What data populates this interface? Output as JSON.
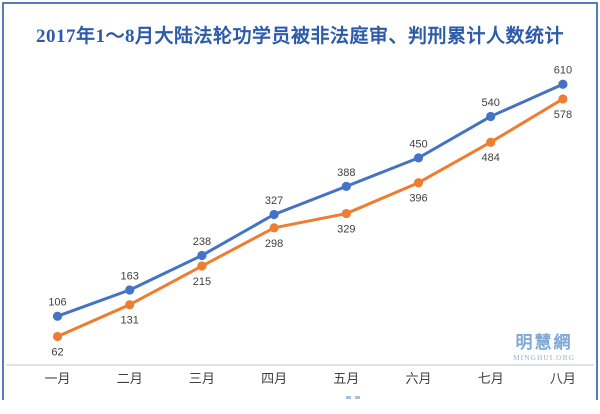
{
  "chart_data": {
    "type": "line",
    "title": "2017年1～8月大陆法轮功学员被非法庭审、判刑累计人数统计",
    "categories": [
      "一月",
      "二月",
      "三月",
      "四月",
      "五月",
      "六月",
      "七月",
      "八月"
    ],
    "series": [
      {
        "name": "blue-line",
        "color": "#4472C4",
        "values": [
          106,
          163,
          238,
          327,
          388,
          450,
          540,
          610
        ],
        "label_position": "above"
      },
      {
        "name": "orange-line",
        "color": "#ED7D31",
        "values": [
          62,
          131,
          215,
          298,
          329,
          396,
          484,
          578
        ],
        "label_position": "below"
      }
    ],
    "ylim": [
      0,
      650
    ],
    "grid": false,
    "legend": "none",
    "data_labels": true,
    "xlabel": "",
    "ylabel": ""
  },
  "watermark": {
    "logo": "明慧網",
    "subtext": "MINGHUI.ORG"
  },
  "colors": {
    "title": "#2D5BA9",
    "frame_border": "#4D80BD",
    "axis_line": "#D9D9D9",
    "data_label": "#404040",
    "axis_label": "#3F3F3F",
    "watermark": "#7FA8D4"
  }
}
